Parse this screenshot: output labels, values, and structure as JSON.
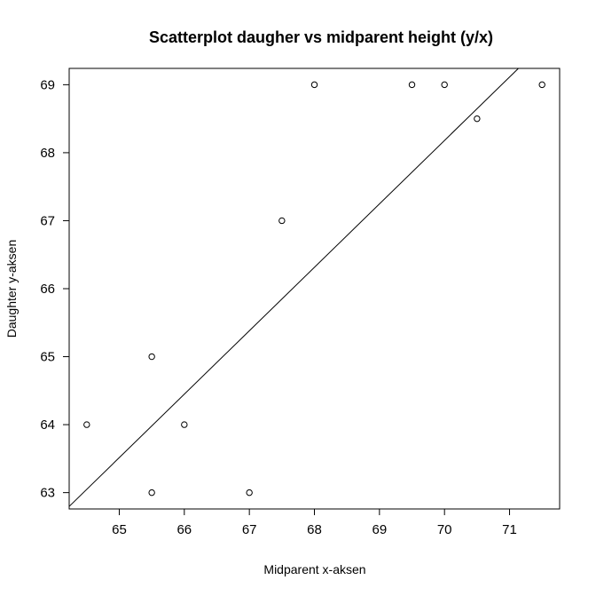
{
  "chart_data": {
    "type": "scatter",
    "title": "Scatterplot daugher vs midparent height (y/x)",
    "xlabel": "Midparent x-aksen",
    "ylabel": "Daughter y-aksen",
    "xlim": [
      64.23,
      71.77
    ],
    "ylim": [
      62.76,
      69.24
    ],
    "x_ticks": [
      65,
      66,
      67,
      68,
      69,
      70,
      71
    ],
    "y_ticks": [
      63,
      64,
      65,
      66,
      67,
      68,
      69
    ],
    "grid": false,
    "points": [
      {
        "x": 64.5,
        "y": 64
      },
      {
        "x": 65.5,
        "y": 63
      },
      {
        "x": 65.5,
        "y": 65
      },
      {
        "x": 66.0,
        "y": 64
      },
      {
        "x": 67.0,
        "y": 63
      },
      {
        "x": 67.5,
        "y": 67
      },
      {
        "x": 68.0,
        "y": 69
      },
      {
        "x": 69.5,
        "y": 69
      },
      {
        "x": 70.0,
        "y": 69
      },
      {
        "x": 70.5,
        "y": 68.5
      },
      {
        "x": 71.5,
        "y": 69
      }
    ],
    "regression_line": {
      "slope": 0.933,
      "intercept": 2.87
    }
  }
}
